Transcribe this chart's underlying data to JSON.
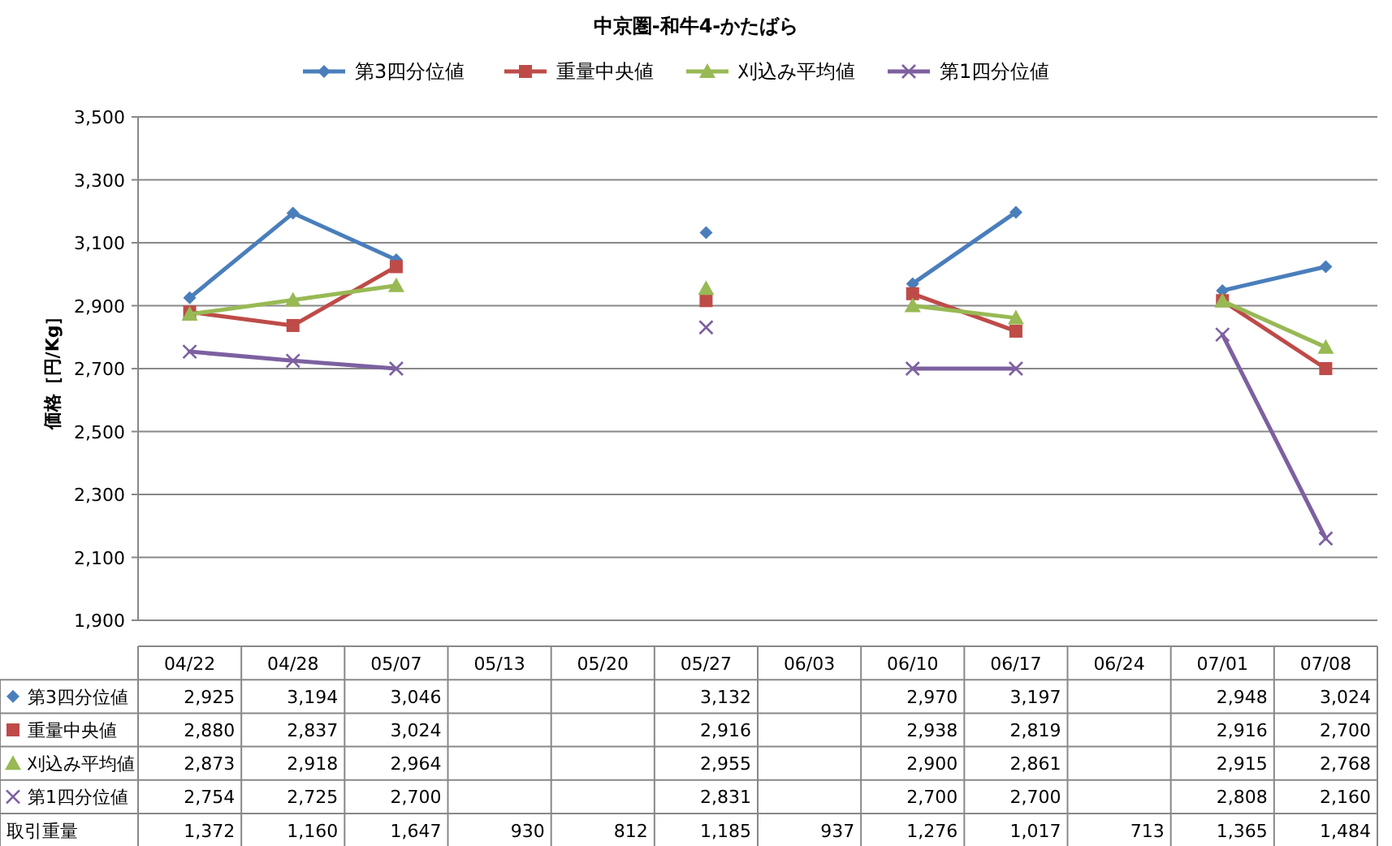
{
  "chart_data": [
    {
      "type": "line",
      "title": "中京圏-和牛4-かたばら",
      "ylabel": "価格［円/Kg］",
      "categories": [
        "04/22",
        "04/28",
        "05/07",
        "05/13",
        "05/20",
        "05/27",
        "06/03",
        "06/10",
        "06/17",
        "06/24",
        "07/01",
        "07/08"
      ],
      "series": [
        {
          "name": "第3四分位値",
          "color": "#4a7ebb",
          "marker": "diamond",
          "values": [
            2925,
            3194,
            3046,
            null,
            null,
            3132,
            null,
            2970,
            3197,
            null,
            2948,
            3024
          ],
          "value_labels": [
            "2,925",
            "3,194",
            "3,046",
            null,
            null,
            "3,132",
            null,
            "2,970",
            "3,197",
            null,
            "2,948",
            "3,024"
          ]
        },
        {
          "name": "重量中央値",
          "color": "#be4b48",
          "marker": "square",
          "values": [
            2880,
            2837,
            3024,
            null,
            null,
            2916,
            null,
            2938,
            2819,
            null,
            2916,
            2700
          ],
          "value_labels": [
            "2,880",
            "2,837",
            "3,024",
            null,
            null,
            "2,916",
            null,
            "2,938",
            "2,819",
            null,
            "2,916",
            "2,700"
          ]
        },
        {
          "name": "刈込み平均値",
          "color": "#98b954",
          "marker": "triangle",
          "values": [
            2873,
            2918,
            2964,
            null,
            null,
            2955,
            null,
            2900,
            2861,
            null,
            2915,
            2768
          ],
          "value_labels": [
            "2,873",
            "2,918",
            "2,964",
            null,
            null,
            "2,955",
            null,
            "2,900",
            "2,861",
            null,
            "2,915",
            "2,768"
          ]
        },
        {
          "name": "第1四分位値",
          "color": "#7d60a0",
          "marker": "cross",
          "values": [
            2754,
            2725,
            2700,
            null,
            null,
            2831,
            null,
            2700,
            2700,
            null,
            2808,
            2160
          ],
          "value_labels": [
            "2,754",
            "2,725",
            "2,700",
            null,
            null,
            "2,831",
            null,
            "2,700",
            "2,700",
            null,
            "2,808",
            "2,160"
          ]
        }
      ],
      "ylim": [
        1900,
        3500
      ],
      "yticks": [
        {
          "value": 1900,
          "label": "1,900"
        },
        {
          "value": 2100,
          "label": "2,100"
        },
        {
          "value": 2300,
          "label": "2,300"
        },
        {
          "value": 2500,
          "label": "2,500"
        },
        {
          "value": 2700,
          "label": "2,700"
        },
        {
          "value": 2900,
          "label": "2,900"
        },
        {
          "value": 3100,
          "label": "3,100"
        },
        {
          "value": 3300,
          "label": "3,300"
        },
        {
          "value": 3500,
          "label": "3,500"
        }
      ],
      "grid": "y",
      "legend": "top"
    },
    {
      "type": "other",
      "series": [
        {
          "name": "取引重量",
          "values": [
            1372,
            1160,
            1647,
            930,
            812,
            1185,
            937,
            1276,
            1017,
            713,
            1365,
            1484
          ],
          "value_labels": [
            "1,372",
            "1,160",
            "1,647",
            "930",
            "812",
            "1,185",
            "937",
            "1,276",
            "1,017",
            "713",
            "1,365",
            "1,484"
          ]
        }
      ]
    }
  ]
}
